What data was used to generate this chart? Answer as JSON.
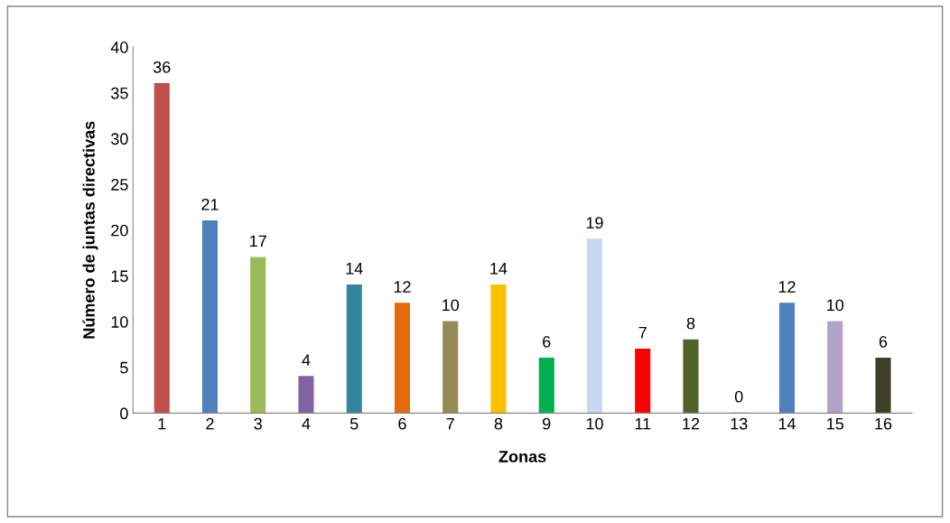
{
  "chart_data": {
    "type": "bar",
    "xlabel": "Zonas",
    "ylabel": "Número de juntas directivas",
    "categories": [
      "1",
      "2",
      "3",
      "4",
      "5",
      "6",
      "7",
      "8",
      "9",
      "10",
      "11",
      "12",
      "13",
      "14",
      "15",
      "16"
    ],
    "values": [
      36,
      21,
      17,
      4,
      14,
      12,
      10,
      14,
      6,
      19,
      7,
      8,
      0,
      12,
      10,
      6
    ],
    "colors": [
      "#c0504d",
      "#4f81bd",
      "#9bbb59",
      "#8064a2",
      "#31859c",
      "#e36c09",
      "#948a54",
      "#ffc000",
      "#00b050",
      "#c6d9f1",
      "#ff0000",
      "#4f6228",
      "#ff6699",
      "#4f81bd",
      "#b3a2c7",
      "#3f3f27"
    ],
    "ylim": [
      0,
      40
    ],
    "yticks": [
      0,
      5,
      10,
      15,
      20,
      25,
      30,
      35,
      40
    ],
    "grid": false,
    "legend": false,
    "data_labels": true
  }
}
